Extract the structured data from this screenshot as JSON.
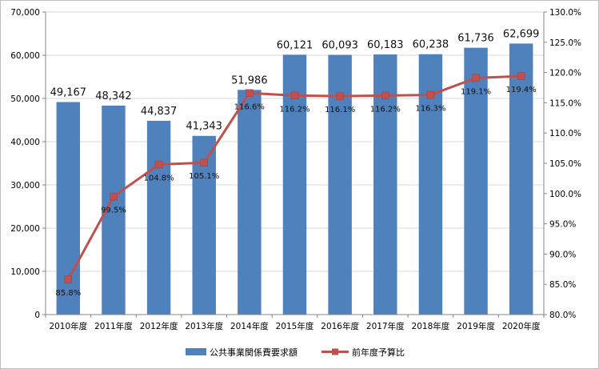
{
  "colors": {
    "bar": "#4f81bd",
    "line": "#c0504d",
    "grid": "#d9d9d9",
    "axis": "#868686"
  },
  "chart_data": {
    "type": "bar",
    "categories": [
      "2010年度",
      "2011年度",
      "2012年度",
      "2013年度",
      "2014年度",
      "2015年度",
      "2016年度",
      "2017年度",
      "2018年度",
      "2019年度",
      "2020年度"
    ],
    "series": [
      {
        "name": "公共事業関係費要求額",
        "type": "bar",
        "axis": "left",
        "values": [
          49167,
          48342,
          44837,
          41343,
          51986,
          60121,
          60093,
          60183,
          60238,
          61736,
          62699
        ],
        "labels": [
          "49,167",
          "48,342",
          "44,837",
          "41,343",
          "51,986",
          "60,121",
          "60,093",
          "60,183",
          "60,238",
          "61,736",
          "62,699"
        ]
      },
      {
        "name": "前年度予算比",
        "type": "line",
        "axis": "right",
        "values": [
          85.8,
          99.5,
          104.8,
          105.1,
          116.6,
          116.2,
          116.1,
          116.2,
          116.3,
          119.1,
          119.4
        ],
        "labels": [
          "85.8%",
          "99.5%",
          "104.8%",
          "105.1%",
          "116.6%",
          "116.2%",
          "116.1%",
          "116.2%",
          "116.3%",
          "119.1%",
          "119.4%"
        ]
      }
    ],
    "y_left": {
      "ylim": [
        0,
        70000
      ],
      "ticks": [
        "0",
        "10,000",
        "20,000",
        "30,000",
        "40,000",
        "50,000",
        "60,000",
        "70,000"
      ]
    },
    "y_right": {
      "ylim": [
        80,
        130
      ],
      "ticks": [
        "80.0%",
        "85.0%",
        "90.0%",
        "95.0%",
        "100.0%",
        "105.0%",
        "110.0%",
        "115.0%",
        "120.0%",
        "125.0%",
        "130.0%"
      ]
    },
    "grid": true,
    "legend": "bottom"
  }
}
